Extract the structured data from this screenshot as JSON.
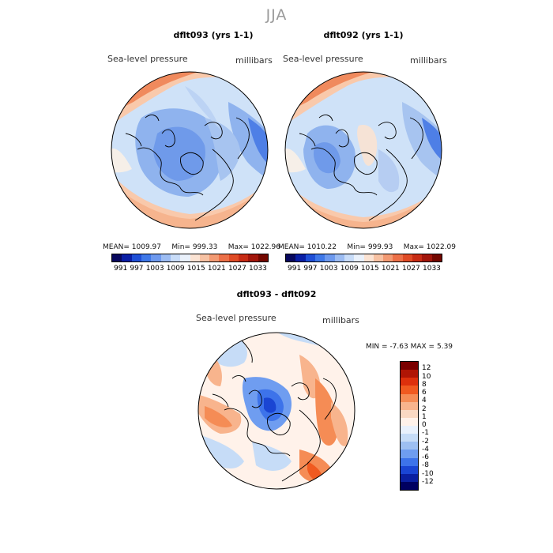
{
  "header": {
    "season": "JJA"
  },
  "panels": [
    {
      "title": "dflt093 (yrs 1-1)",
      "variable": "Sea-level pressure",
      "units": "millibars",
      "stats": {
        "mean_label": "MEAN=",
        "mean": "1009.97",
        "min_label": "Min=",
        "min": "999.33",
        "max_label": "Max=",
        "max": "1022.96"
      }
    },
    {
      "title": "dflt092 (yrs 1-1)",
      "variable": "Sea-level pressure",
      "units": "millibars",
      "stats": {
        "mean_label": "MEAN=",
        "mean": "1010.22",
        "min_label": "Min=",
        "min": "999.93",
        "max_label": "Max=",
        "max": "1022.09"
      }
    }
  ],
  "diff": {
    "title": "dflt093 - dflt092",
    "variable": "Sea-level pressure",
    "units": "millibars",
    "min_label": "MIN =",
    "min": "-7.63",
    "max_label": "MAX =",
    "max": "5.39"
  },
  "colorbar_abs": {
    "ticks": [
      "991",
      "997",
      "1003",
      "1009",
      "1015",
      "1021",
      "1027",
      "1033"
    ],
    "colors": [
      "#08085e",
      "#0a1fa5",
      "#1f4fd6",
      "#3f78e8",
      "#6d99ee",
      "#9cbcf2",
      "#c8dcf8",
      "#eaf1fb",
      "#fbe3d3",
      "#f7c2a3",
      "#f29a73",
      "#ec7048",
      "#df4b26",
      "#c72c15",
      "#a2160b",
      "#740800"
    ]
  },
  "colorbar_diff": {
    "labels": [
      "12",
      "10",
      "8",
      "6",
      "4",
      "2",
      "1",
      "0",
      "-1",
      "-2",
      "-4",
      "-6",
      "-8",
      "-10",
      "-12"
    ],
    "colors": [
      "#7a0000",
      "#b01505",
      "#dd300c",
      "#f05a20",
      "#f58c55",
      "#f8b48d",
      "#fad9c3",
      "#fff2ea",
      "#e9f1fc",
      "#c6dcf7",
      "#9dbff2",
      "#6f9df0",
      "#3d73ea",
      "#1a45d3",
      "#0a1fa0",
      "#000060"
    ]
  },
  "map_colors": {
    "ocean_blue": "#cfe2f8",
    "mid_blue": "#8fb3ee",
    "deep_blue": "#4e7fe6",
    "warm": "#f9c9ab",
    "hot": "#f08a5d",
    "pale": "#f6efe8",
    "navy": "#2e52d8"
  }
}
